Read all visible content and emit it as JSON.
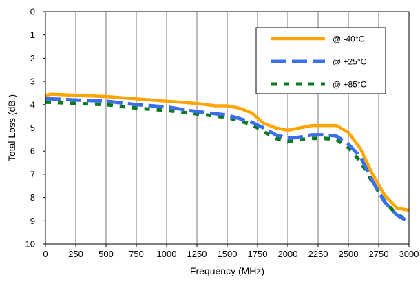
{
  "chart_data": {
    "type": "line",
    "xlabel": "Frequency (MHz)",
    "ylabel": "Total Loss (dB.)",
    "xlim": [
      0,
      3000
    ],
    "ylim": [
      0,
      10
    ],
    "y_inverted": true,
    "grid": "vertical",
    "legend_position": "top-right",
    "x_ticks": [
      "0",
      "250",
      "500",
      "750",
      "1000",
      "1250",
      "1500",
      "1750",
      "2000",
      "2250",
      "2500",
      "2750",
      "3000"
    ],
    "y_ticks": [
      "0",
      "1",
      "2",
      "3",
      "4",
      "5",
      "6",
      "7",
      "8",
      "9",
      "10"
    ],
    "series": [
      {
        "name": "@ -40°C",
        "color": "#FFA500",
        "style": "solid",
        "points": [
          [
            0,
            3.6
          ],
          [
            50,
            3.55
          ],
          [
            250,
            3.6
          ],
          [
            500,
            3.65
          ],
          [
            750,
            3.75
          ],
          [
            1000,
            3.85
          ],
          [
            1250,
            3.95
          ],
          [
            1400,
            4.05
          ],
          [
            1500,
            4.05
          ],
          [
            1600,
            4.15
          ],
          [
            1700,
            4.35
          ],
          [
            1800,
            4.8
          ],
          [
            1900,
            5.0
          ],
          [
            2000,
            5.1
          ],
          [
            2100,
            5.0
          ],
          [
            2200,
            4.9
          ],
          [
            2400,
            4.9
          ],
          [
            2500,
            5.2
          ],
          [
            2600,
            5.9
          ],
          [
            2700,
            7.0
          ],
          [
            2800,
            7.9
          ],
          [
            2900,
            8.45
          ],
          [
            3000,
            8.55
          ]
        ]
      },
      {
        "name": "@ +25°C",
        "color": "#3B6FEA",
        "style": "dashed",
        "points": [
          [
            0,
            3.75
          ],
          [
            50,
            3.75
          ],
          [
            250,
            3.8
          ],
          [
            500,
            3.85
          ],
          [
            750,
            4.0
          ],
          [
            1000,
            4.1
          ],
          [
            1250,
            4.3
          ],
          [
            1500,
            4.45
          ],
          [
            1600,
            4.6
          ],
          [
            1700,
            4.75
          ],
          [
            1800,
            5.0
          ],
          [
            1900,
            5.3
          ],
          [
            2000,
            5.45
          ],
          [
            2100,
            5.4
          ],
          [
            2200,
            5.3
          ],
          [
            2300,
            5.3
          ],
          [
            2400,
            5.35
          ],
          [
            2500,
            5.7
          ],
          [
            2600,
            6.25
          ],
          [
            2700,
            7.3
          ],
          [
            2800,
            8.2
          ],
          [
            2900,
            8.75
          ],
          [
            3000,
            9.05
          ]
        ]
      },
      {
        "name": "@ +85°C",
        "color": "#0B7A1E",
        "style": "dotted",
        "points": [
          [
            0,
            3.9
          ],
          [
            50,
            3.9
          ],
          [
            250,
            3.95
          ],
          [
            500,
            4.0
          ],
          [
            750,
            4.15
          ],
          [
            1000,
            4.25
          ],
          [
            1250,
            4.4
          ],
          [
            1500,
            4.55
          ],
          [
            1600,
            4.7
          ],
          [
            1700,
            4.85
          ],
          [
            1800,
            5.15
          ],
          [
            1900,
            5.45
          ],
          [
            2000,
            5.6
          ],
          [
            2100,
            5.5
          ],
          [
            2200,
            5.45
          ],
          [
            2300,
            5.45
          ],
          [
            2400,
            5.5
          ],
          [
            2500,
            5.85
          ],
          [
            2600,
            6.45
          ],
          [
            2700,
            7.35
          ],
          [
            2800,
            8.15
          ],
          [
            2900,
            8.75
          ],
          [
            3000,
            8.95
          ]
        ]
      }
    ]
  }
}
